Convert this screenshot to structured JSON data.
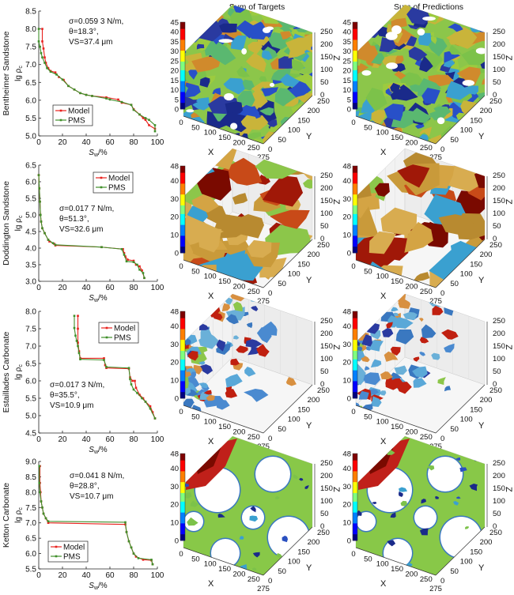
{
  "column_titles": [
    "Sum of Targets",
    "Sum of Predictions"
  ],
  "legend": {
    "model": "Model",
    "pms": "PMS"
  },
  "colors": {
    "model": "#e8211d",
    "pms": "#3f8f2a"
  },
  "volume": {
    "axis_labels": {
      "x": "X",
      "y": "Y",
      "z": "Z"
    },
    "x_ticks": [
      "0",
      "50",
      "100",
      "150",
      "200",
      "250",
      "275"
    ],
    "y_ticks": [
      "0",
      "50",
      "100",
      "150",
      "200",
      "250"
    ],
    "z_ticks": [
      "0",
      "50",
      "100",
      "150",
      "200",
      "250"
    ],
    "colormap": "jet",
    "colorbars": [
      [
        "0",
        "5",
        "10",
        "15",
        "20",
        "25",
        "30",
        "35",
        "40",
        "45"
      ],
      [
        "0",
        "10",
        "20",
        "30",
        "40",
        "48"
      ],
      [
        "0",
        "10",
        "20",
        "30",
        "40",
        "48"
      ],
      [
        "0",
        "10",
        "20",
        "30",
        "40",
        "48"
      ]
    ]
  },
  "chart_data": [
    {
      "type": "line",
      "row_label": "Bentheimer Sandstone",
      "ylabel": {
        "main": "lg ρ",
        "sub": "c"
      },
      "xlabel": {
        "main": "S",
        "sub": "w",
        "unit": "/%"
      },
      "annotation": [
        "σ=0.059 3 N/m,",
        "θ=18.3°,",
        "VS=37.4 μm"
      ],
      "xlim": [
        0,
        100
      ],
      "ylim": [
        5.0,
        8.5
      ],
      "x_ticks": [
        "0",
        "20",
        "40",
        "60",
        "80",
        "100"
      ],
      "y_ticks": [
        "5.0",
        "5.5",
        "6.0",
        "6.5",
        "7.0",
        "7.5",
        "8.0",
        "8.5"
      ],
      "legend_position": "bottom-left",
      "series": [
        {
          "name": "Model",
          "points": [
            [
              3,
              8.0
            ],
            [
              3,
              7.65
            ],
            [
              4,
              7.45
            ],
            [
              5,
              7.2
            ],
            [
              6,
              7.05
            ],
            [
              8,
              6.9
            ],
            [
              10,
              6.82
            ],
            [
              14,
              6.78
            ],
            [
              17,
              6.65
            ],
            [
              21,
              6.57
            ],
            [
              25,
              6.4
            ],
            [
              30,
              6.3
            ],
            [
              35,
              6.2
            ],
            [
              40,
              6.15
            ],
            [
              45,
              6.12
            ],
            [
              57,
              6.08
            ],
            [
              67,
              6.02
            ],
            [
              70,
              5.93
            ],
            [
              78,
              5.87
            ],
            [
              80,
              5.75
            ],
            [
              85,
              5.6
            ],
            [
              88,
              5.5
            ],
            [
              90,
              5.45
            ],
            [
              93,
              5.3
            ],
            [
              98,
              5.2
            ]
          ]
        },
        {
          "name": "PMS",
          "points": [
            [
              0,
              8.0
            ],
            [
              0,
              7.65
            ],
            [
              1,
              7.5
            ],
            [
              2,
              7.32
            ],
            [
              3,
              7.2
            ],
            [
              5,
              7.05
            ],
            [
              7,
              6.9
            ],
            [
              10,
              6.8
            ],
            [
              15,
              6.72
            ],
            [
              20,
              6.58
            ],
            [
              25,
              6.4
            ],
            [
              30,
              6.3
            ],
            [
              35,
              6.2
            ],
            [
              40,
              6.15
            ],
            [
              45,
              6.12
            ],
            [
              57,
              6.05
            ],
            [
              60,
              6.02
            ],
            [
              70,
              5.95
            ],
            [
              78,
              5.87
            ],
            [
              80,
              5.73
            ],
            [
              85,
              5.6
            ],
            [
              90,
              5.5
            ],
            [
              93,
              5.45
            ],
            [
              98,
              5.3
            ],
            [
              98,
              5.13
            ]
          ]
        }
      ]
    },
    {
      "type": "line",
      "row_label": "Doddington Sandstone",
      "ylabel": {
        "main": "lg ρ",
        "sub": "c"
      },
      "xlabel": {
        "main": "S",
        "sub": "w",
        "unit": "/%"
      },
      "annotation": [
        "σ=0.017 7 N/m,",
        "θ=51.3°,",
        "VS=32.6 μm"
      ],
      "xlim": [
        0,
        100
      ],
      "ylim": [
        3.0,
        6.5
      ],
      "x_ticks": [
        "0",
        "20",
        "40",
        "60",
        "80",
        "100"
      ],
      "y_ticks": [
        "3.0",
        "3.5",
        "4.0",
        "4.5",
        "5.0",
        "5.5",
        "6.0",
        "6.5"
      ],
      "legend_position": "top-right",
      "series": [
        {
          "name": "Model",
          "points": [
            [
              0,
              6.2
            ],
            [
              0.5,
              5.8
            ],
            [
              1,
              5.4
            ],
            [
              1.5,
              5.0
            ],
            [
              2,
              4.8
            ],
            [
              3,
              4.6
            ],
            [
              5,
              4.45
            ],
            [
              8,
              4.25
            ],
            [
              9,
              4.2
            ],
            [
              13,
              4.13
            ],
            [
              14,
              4.08
            ],
            [
              53,
              4.03
            ],
            [
              71,
              3.97
            ],
            [
              72,
              3.85
            ],
            [
              73,
              3.75
            ],
            [
              75,
              3.65
            ],
            [
              80,
              3.62
            ],
            [
              82,
              3.5
            ],
            [
              85,
              3.45
            ],
            [
              87,
              3.33
            ],
            [
              89,
              3.1
            ]
          ]
        },
        {
          "name": "PMS",
          "points": [
            [
              0,
              6.2
            ],
            [
              0.5,
              5.8
            ],
            [
              1,
              5.4
            ],
            [
              1.5,
              5.0
            ],
            [
              2,
              4.8
            ],
            [
              3,
              4.6
            ],
            [
              5,
              4.45
            ],
            [
              8,
              4.25
            ],
            [
              12,
              4.15
            ],
            [
              14,
              4.1
            ],
            [
              53,
              4.03
            ],
            [
              70,
              3.97
            ],
            [
              72,
              3.8
            ],
            [
              74,
              3.6
            ],
            [
              80,
              3.58
            ],
            [
              83,
              3.5
            ],
            [
              85,
              3.35
            ],
            [
              88,
              3.25
            ],
            [
              89,
              3.1
            ]
          ]
        }
      ]
    },
    {
      "type": "line",
      "row_label": "Estaillades Carbonate",
      "ylabel": {
        "main": "lg ρ",
        "sub": "c"
      },
      "xlabel": {
        "main": "S",
        "sub": "w",
        "unit": "/%"
      },
      "annotation": [
        "σ=0.017 3 N/m,",
        "θ=35.5°,",
        "VS=10.9 μm"
      ],
      "xlim": [
        0,
        100
      ],
      "ylim": [
        4.5,
        8.0
      ],
      "x_ticks": [
        "0",
        "20",
        "40",
        "60",
        "80",
        "100"
      ],
      "y_ticks": [
        "4.5",
        "5.0",
        "5.5",
        "6.0",
        "6.5",
        "7.0",
        "7.5",
        "8.0"
      ],
      "legend_position": "top-right",
      "series": [
        {
          "name": "Model",
          "points": [
            [
              33,
              7.87
            ],
            [
              33,
              7.5
            ],
            [
              33,
              7.1
            ],
            [
              34,
              6.85
            ],
            [
              35,
              6.65
            ],
            [
              55,
              6.65
            ],
            [
              56,
              6.45
            ],
            [
              57,
              6.37
            ],
            [
              76,
              6.35
            ],
            [
              77,
              6.1
            ],
            [
              79,
              6.0
            ],
            [
              81,
              6.0
            ],
            [
              82,
              5.8
            ],
            [
              85,
              5.6
            ],
            [
              88,
              5.5
            ],
            [
              90,
              5.4
            ],
            [
              94,
              5.27
            ],
            [
              96,
              5.1
            ],
            [
              98,
              4.92
            ]
          ]
        },
        {
          "name": "PMS",
          "points": [
            [
              30,
              7.87
            ],
            [
              30,
              7.52
            ],
            [
              31,
              7.3
            ],
            [
              32,
              7.15
            ],
            [
              33,
              7.0
            ],
            [
              34,
              6.8
            ],
            [
              35,
              6.62
            ],
            [
              55,
              6.6
            ],
            [
              57,
              6.4
            ],
            [
              76,
              6.37
            ],
            [
              77,
              6.05
            ],
            [
              78,
              5.9
            ],
            [
              80,
              5.75
            ],
            [
              83,
              5.65
            ],
            [
              87,
              5.5
            ],
            [
              90,
              5.4
            ],
            [
              94,
              5.2
            ],
            [
              98,
              4.92
            ]
          ]
        }
      ]
    },
    {
      "type": "line",
      "row_label": "Ketton Carbonate",
      "ylabel": {
        "main": "lg ρ",
        "sub": "c"
      },
      "xlabel": {
        "main": "S",
        "sub": "w",
        "unit": "/%"
      },
      "annotation": [
        "σ=0.041 8 N/m,",
        "θ=28.8°,",
        "VS=10.7 μm"
      ],
      "xlim": [
        0,
        100
      ],
      "ylim": [
        5.5,
        9.0
      ],
      "x_ticks": [
        "0",
        "20",
        "40",
        "60",
        "80",
        "100"
      ],
      "y_ticks": [
        "5.5",
        "6.0",
        "6.5",
        "7.0",
        "7.5",
        "8.0",
        "8.5",
        "9.0"
      ],
      "legend_position": "bottom-left",
      "series": [
        {
          "name": "Model",
          "points": [
            [
              1,
              8.85
            ],
            [
              1,
              8.3
            ],
            [
              1.5,
              8.0
            ],
            [
              2,
              7.7
            ],
            [
              3,
              7.5
            ],
            [
              4,
              7.3
            ],
            [
              6,
              7.15
            ],
            [
              8,
              7.0
            ],
            [
              73,
              6.95
            ],
            [
              74,
              6.7
            ],
            [
              76,
              6.4
            ],
            [
              78,
              6.2
            ],
            [
              80,
              6.0
            ],
            [
              82,
              5.9
            ],
            [
              88,
              5.8
            ],
            [
              95,
              5.78
            ],
            [
              96,
              5.65
            ]
          ]
        },
        {
          "name": "PMS",
          "points": [
            [
              0.5,
              8.85
            ],
            [
              0.5,
              8.3
            ],
            [
              1,
              8.0
            ],
            [
              2,
              7.7
            ],
            [
              3,
              7.5
            ],
            [
              4,
              7.3
            ],
            [
              6,
              7.15
            ],
            [
              8,
              7.05
            ],
            [
              73,
              7.02
            ],
            [
              74,
              6.7
            ],
            [
              76,
              6.4
            ],
            [
              78,
              6.2
            ],
            [
              80,
              6.0
            ],
            [
              84,
              5.85
            ],
            [
              95,
              5.8
            ],
            [
              96,
              5.65
            ]
          ]
        }
      ]
    }
  ]
}
